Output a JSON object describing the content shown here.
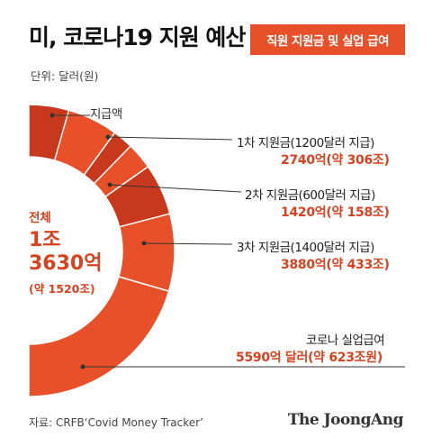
{
  "header": {
    "title": "미, 코로나19 지원 예산",
    "badge": "직원 지원금 및 실업 급여",
    "unit": "단위: 달러(원)"
  },
  "center": {
    "label": "전체",
    "value_line1": "1조",
    "value_line2": "3630억",
    "sub": "(약 1520조)"
  },
  "inner_label": "지급액",
  "labels": {
    "s1_name": "1차 지원금(1200달러 지급)",
    "s1_value": "2740억(약 306조)",
    "s2_name": "2차 지원금(600달러 지급)",
    "s2_value": "1420억(약 158조)",
    "s3_name": "3차 지원금(1400달러 지급)",
    "s3_value": "3880억(약 433조)",
    "s4_name": "코로나 실업급여",
    "s4_value": "5590억 달러(약 623조원)"
  },
  "footer": {
    "source": "자료: CRFB‘Covid Money Tracker’",
    "brand": "The JoongAng"
  },
  "colors": {
    "accent": "#e8502a",
    "dark": "#c8381c",
    "value_text": "#d8421f"
  },
  "chart_data": {
    "type": "pie",
    "categories": [
      "1차 지원금",
      "2차 지원금",
      "3차 지원금",
      "코로나 실업급여"
    ],
    "values": [
      2740,
      1420,
      3880,
      5590
    ],
    "unit": "억 달러",
    "total": 13630,
    "sub_segments": [
      {
        "name": "지급액",
        "values": [
          1200,
          600,
          1400
        ]
      }
    ]
  }
}
